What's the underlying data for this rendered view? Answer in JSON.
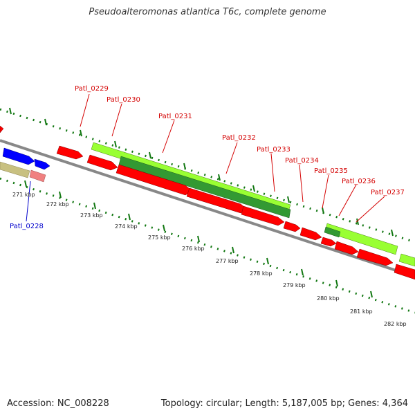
{
  "title": "Pseudoalteromonas atlantica T6c, complete genome",
  "footer": {
    "accession": "Accession: NC_008228",
    "summary": "Topology: circular; Length: 5,187,005 bp; Genes: 4,364"
  },
  "gene_labels": [
    {
      "id": "Patl_0228",
      "color": "#0000cc"
    },
    {
      "id": "Patl_0229",
      "color": "#d40000"
    },
    {
      "id": "Patl_0230",
      "color": "#d40000"
    },
    {
      "id": "Patl_0231",
      "color": "#d40000"
    },
    {
      "id": "Patl_0232",
      "color": "#d40000"
    },
    {
      "id": "Patl_0233",
      "color": "#d40000"
    },
    {
      "id": "Patl_0234",
      "color": "#d40000"
    },
    {
      "id": "Patl_0235",
      "color": "#d40000"
    },
    {
      "id": "Patl_0236",
      "color": "#d40000"
    },
    {
      "id": "Patl_0237",
      "color": "#d40000"
    }
  ],
  "kbp_labels": [
    "271 kbp",
    "272 kbp",
    "273 kbp",
    "274 kbp",
    "275 kbp",
    "276 kbp",
    "277 kbp",
    "278 kbp",
    "279 kbp",
    "280 kbp",
    "281 kbp",
    "282 kbp"
  ],
  "colors": {
    "cds": "#ff0000",
    "blue_feature": "#0000ff",
    "tan_feature": "#c8c080",
    "pink_feature": "#f08080",
    "lime_feature": "#99ff33",
    "dark_green_feature": "#339933",
    "backbone": "#888888",
    "ticks": "#117711"
  }
}
